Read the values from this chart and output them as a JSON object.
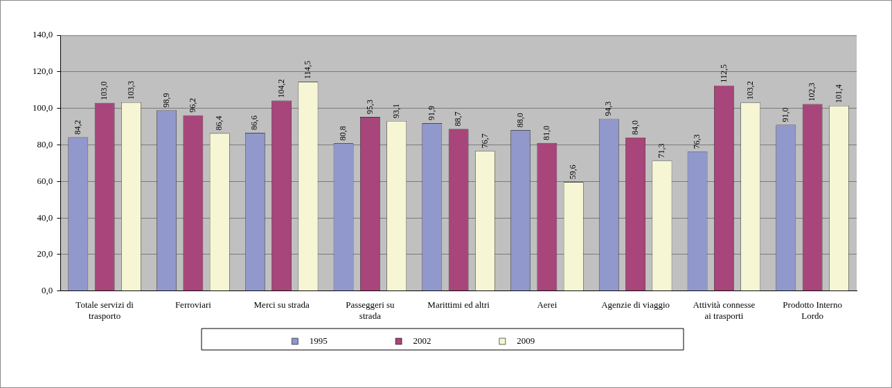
{
  "chart_data": {
    "type": "bar",
    "categories": [
      "Totale servizi di trasporto",
      "Ferroviari",
      "Merci su strada",
      "Passeggeri su strada",
      "Marittimi ed altri",
      "Aerei",
      "Agenzie di viaggio",
      "Attività connesse ai trasporti",
      "Prodotto Interno Lordo"
    ],
    "series": [
      {
        "name": "1995",
        "color": "#9098cc",
        "values": [
          84.2,
          98.9,
          86.6,
          80.8,
          91.9,
          88.0,
          94.3,
          76.3,
          91.0
        ],
        "value_labels": [
          "84,2",
          "98,9",
          "86,6",
          "80,8",
          "91,9",
          "88,0",
          "94,3",
          "76,3",
          "91,0"
        ]
      },
      {
        "name": "2002",
        "color": "#a8457a",
        "values": [
          103.0,
          96.2,
          104.2,
          95.3,
          88.7,
          81.0,
          84.0,
          112.5,
          102.3
        ],
        "value_labels": [
          "103,0",
          "96,2",
          "104,2",
          "95,3",
          "88,7",
          "81,0",
          "84,0",
          "112,5",
          "102,3"
        ]
      },
      {
        "name": "2009",
        "color": "#f6f6d4",
        "values": [
          103.3,
          86.4,
          114.5,
          93.1,
          76.7,
          59.6,
          71.3,
          103.2,
          101.4
        ],
        "value_labels": [
          "103,3",
          "86,4",
          "114,5",
          "93,1",
          "76,7",
          "59,6",
          "71,3",
          "103,2",
          "101,4"
        ]
      }
    ],
    "ylim": [
      0,
      140
    ],
    "yticks": [
      {
        "value": 0,
        "label": "0,0"
      },
      {
        "value": 20,
        "label": "20,0"
      },
      {
        "value": 40,
        "label": "40,0"
      },
      {
        "value": 60,
        "label": "60,0"
      },
      {
        "value": 80,
        "label": "80,0"
      },
      {
        "value": 100,
        "label": "100,0"
      },
      {
        "value": 120,
        "label": "120,0"
      },
      {
        "value": 140,
        "label": "140,0"
      }
    ],
    "grid": "y",
    "legend": "bottom"
  }
}
